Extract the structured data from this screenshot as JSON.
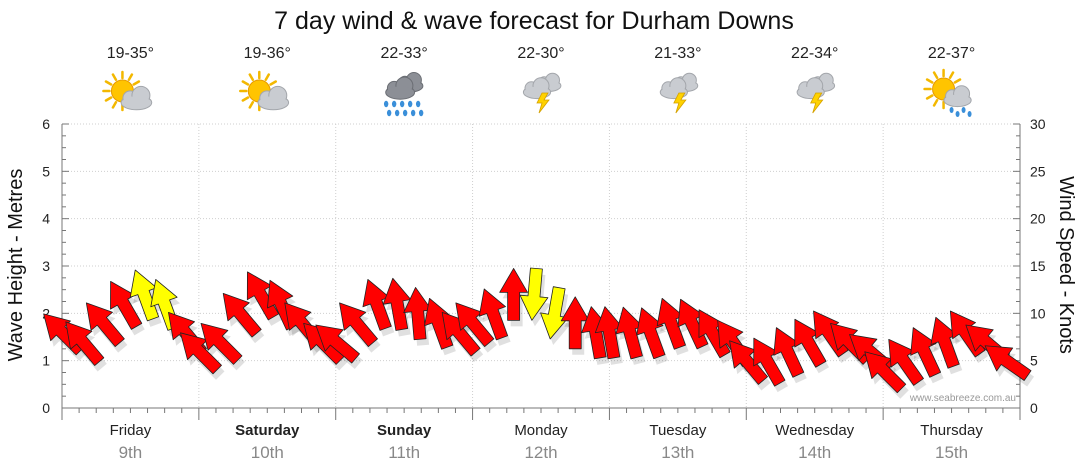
{
  "chart_data": {
    "type": "line",
    "title": "7 day wind & wave forecast for Durham Downs",
    "ylabel_left": "Wave Height - Metres",
    "ylabel_right": "Wind Speed - Knots",
    "ylim_left": [
      0,
      6
    ],
    "ylim_right": [
      0,
      30
    ],
    "yticks_left": [
      "0",
      "1",
      "2",
      "3",
      "4",
      "5",
      "6"
    ],
    "yticks_right": [
      "0",
      "5",
      "10",
      "15",
      "20",
      "25",
      "30"
    ],
    "grid": true,
    "credit": "www.seabreeze.com.au",
    "days": [
      {
        "name": "Friday",
        "date": "9th",
        "bold": false,
        "temp": "19-35°",
        "icon": "partly-cloudy-sun-icon"
      },
      {
        "name": "Saturday",
        "date": "10th",
        "bold": true,
        "temp": "19-36°",
        "icon": "partly-cloudy-sun-icon"
      },
      {
        "name": "Sunday",
        "date": "11th",
        "bold": true,
        "temp": "22-33°",
        "icon": "rain-cloud-icon"
      },
      {
        "name": "Monday",
        "date": "12th",
        "bold": false,
        "temp": "22-30°",
        "icon": "thunderstorm-icon"
      },
      {
        "name": "Tuesday",
        "date": "13th",
        "bold": false,
        "temp": "21-33°",
        "icon": "thunderstorm-icon"
      },
      {
        "name": "Wednesday",
        "date": "14th",
        "bold": false,
        "temp": "22-34°",
        "icon": "thunderstorm-icon"
      },
      {
        "name": "Thursday",
        "date": "15th",
        "bold": false,
        "temp": "22-37°",
        "icon": "sun-showers-icon"
      }
    ],
    "series": [
      {
        "name": "Wind Speed - Knots",
        "unit": "knots",
        "color_normal": "#ff0000",
        "color_strong": "#ffff00",
        "x_days": [
          0.0,
          0.15,
          0.3,
          0.45,
          0.6,
          0.75,
          0.9,
          1.0,
          1.15,
          1.3,
          1.45,
          1.6,
          1.75,
          1.9,
          2.0,
          2.15,
          2.3,
          2.45,
          2.6,
          2.75,
          2.9,
          3.0,
          3.15,
          3.3,
          3.45,
          3.6,
          3.75,
          3.9,
          4.0,
          4.15,
          4.3,
          4.45,
          4.6,
          4.75,
          4.9,
          5.0,
          5.15,
          5.3,
          5.45,
          5.6,
          5.75,
          5.9,
          6.0,
          6.15,
          6.3,
          6.45,
          6.6,
          6.75,
          6.9
        ],
        "values": [
          8,
          7,
          9,
          11,
          12,
          11,
          8,
          6,
          7,
          10,
          12,
          11,
          9,
          7,
          7,
          9,
          11,
          11,
          10,
          9,
          8,
          9,
          10,
          12,
          12,
          10,
          9,
          8,
          8,
          8,
          8,
          9,
          9,
          8,
          7,
          5,
          5,
          6,
          7,
          8,
          7,
          6,
          4,
          5,
          6,
          7,
          8,
          7,
          5
        ],
        "direction_deg": [
          225,
          230,
          230,
          240,
          250,
          250,
          230,
          225,
          225,
          230,
          240,
          245,
          230,
          225,
          220,
          230,
          250,
          260,
          265,
          250,
          230,
          230,
          250,
          270,
          95,
          100,
          270,
          260,
          260,
          255,
          250,
          250,
          245,
          240,
          235,
          230,
          240,
          245,
          240,
          235,
          225,
          220,
          225,
          235,
          245,
          250,
          235,
          220,
          215
        ],
        "strong": [
          false,
          false,
          false,
          false,
          true,
          true,
          false,
          false,
          false,
          false,
          false,
          false,
          false,
          false,
          false,
          false,
          false,
          false,
          false,
          false,
          false,
          false,
          false,
          false,
          true,
          true,
          false,
          false,
          false,
          false,
          false,
          false,
          false,
          false,
          false,
          false,
          false,
          false,
          false,
          false,
          false,
          false,
          false,
          false,
          false,
          false,
          false,
          false,
          false
        ]
      }
    ]
  }
}
